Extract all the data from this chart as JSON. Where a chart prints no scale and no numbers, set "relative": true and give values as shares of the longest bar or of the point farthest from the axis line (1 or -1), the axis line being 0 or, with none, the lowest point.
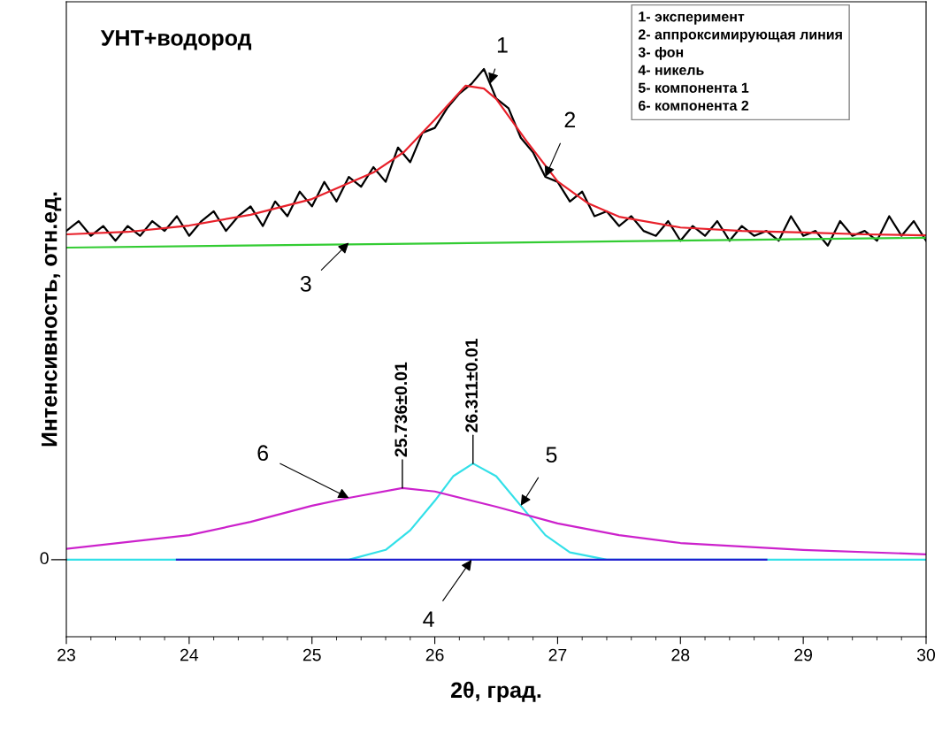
{
  "chart_data": {
    "type": "line",
    "relative": true,
    "xlabel": "2θ, град.",
    "ylabel": "Интенсивность, отн.ед.",
    "xlim": [
      23,
      30
    ],
    "xticks": [
      23,
      24,
      25,
      26,
      27,
      28,
      29,
      30
    ],
    "grid": false,
    "legend": false,
    "marker": "none",
    "line_style": "solid",
    "series": [
      {
        "color": "#000000",
        "x": [
          23.0,
          23.1,
          23.2,
          23.3,
          23.4,
          23.5,
          23.6,
          23.7,
          23.8,
          23.9,
          24.0,
          24.1,
          24.2,
          24.3,
          24.4,
          24.5,
          24.6,
          24.7,
          24.8,
          24.9,
          25.0,
          25.1,
          25.2,
          25.3,
          25.4,
          25.5,
          25.6,
          25.7,
          25.8,
          25.9,
          26.0,
          26.1,
          26.2,
          26.3,
          26.4,
          26.5,
          26.6,
          26.7,
          26.8,
          26.9,
          27.0,
          27.1,
          27.2,
          27.3,
          27.4,
          27.5,
          27.6,
          27.7,
          27.8,
          27.9,
          28.0,
          28.1,
          28.2,
          28.3,
          28.4,
          28.5,
          28.6,
          28.7,
          28.8,
          28.9,
          29.0,
          29.1,
          29.2,
          29.3,
          29.4,
          29.5,
          29.6,
          29.7,
          29.8,
          29.9,
          30.0
        ],
        "values": [
          0.67,
          0.69,
          0.66,
          0.68,
          0.65,
          0.68,
          0.66,
          0.69,
          0.67,
          0.7,
          0.66,
          0.69,
          0.71,
          0.67,
          0.7,
          0.72,
          0.68,
          0.73,
          0.7,
          0.75,
          0.72,
          0.77,
          0.73,
          0.78,
          0.76,
          0.8,
          0.77,
          0.84,
          0.81,
          0.87,
          0.88,
          0.92,
          0.95,
          0.97,
          1.0,
          0.94,
          0.92,
          0.86,
          0.83,
          0.78,
          0.77,
          0.73,
          0.75,
          0.7,
          0.71,
          0.68,
          0.7,
          0.67,
          0.66,
          0.69,
          0.65,
          0.68,
          0.66,
          0.69,
          0.65,
          0.68,
          0.66,
          0.67,
          0.65,
          0.7,
          0.66,
          0.67,
          0.64,
          0.69,
          0.66,
          0.67,
          0.65,
          0.7,
          0.66,
          0.69,
          0.65
        ]
      },
      {
        "color": "#e8202a",
        "x": [
          23.0,
          23.5,
          24.0,
          24.5,
          25.0,
          25.5,
          25.75,
          26.0,
          26.25,
          26.4,
          26.5,
          26.75,
          27.0,
          27.25,
          27.5,
          28.0,
          28.5,
          29.0,
          29.5,
          30.0
        ],
        "values": [
          0.663,
          0.668,
          0.681,
          0.703,
          0.735,
          0.789,
          0.831,
          0.897,
          0.966,
          0.96,
          0.939,
          0.852,
          0.771,
          0.726,
          0.699,
          0.677,
          0.67,
          0.667,
          0.663,
          0.661
        ]
      },
      {
        "color": "#33cc33",
        "x": [
          23,
          30
        ],
        "values": [
          0.636,
          0.656
        ]
      },
      {
        "color": "#33e0e8",
        "x": [
          23.0,
          25.3,
          25.6,
          25.8,
          26.0,
          26.15,
          26.311,
          26.5,
          26.7,
          26.9,
          27.1,
          27.4,
          30.0
        ],
        "values": [
          0,
          0,
          0.02,
          0.06,
          0.12,
          0.17,
          0.196,
          0.17,
          0.11,
          0.05,
          0.015,
          0,
          0
        ]
      },
      {
        "color": "#2020d0",
        "x": [
          23.9,
          28.7
        ],
        "values": [
          0,
          0
        ]
      },
      {
        "color": "#cc22cc",
        "x": [
          23.0,
          24.0,
          24.5,
          25.0,
          25.3,
          25.736,
          26.0,
          26.5,
          27.0,
          27.5,
          28.0,
          29.0,
          30.0
        ],
        "values": [
          0.022,
          0.05,
          0.077,
          0.11,
          0.126,
          0.146,
          0.139,
          0.108,
          0.074,
          0.05,
          0.034,
          0.02,
          0.011
        ]
      }
    ],
    "annotations": [
      "УНТ+водород",
      "1- эксперимент\n2- аппроксимирующая линия\n3- фон\n4- никель\n5- компонента 1\n6- компонента 2",
      {
        "text": "0",
        "x": 23,
        "y": 0
      },
      {
        "text": "1",
        "x": 26.45,
        "y": 0.97
      },
      {
        "text": "2",
        "x": 26.9,
        "y": 0.78
      },
      {
        "text": "3",
        "x": 25.3,
        "y": 0.646
      },
      {
        "text": "4",
        "x": 26.3,
        "y": 0
      },
      {
        "text": "5",
        "x": 26.7,
        "y": 0.11
      },
      {
        "text": "6",
        "x": 25.3,
        "y": 0.126
      },
      {
        "text": "25.736±0.01",
        "x": 25.736,
        "y": 0.146
      },
      {
        "text": "26.311±0.01",
        "x": 26.311,
        "y": 0.196
      }
    ]
  }
}
